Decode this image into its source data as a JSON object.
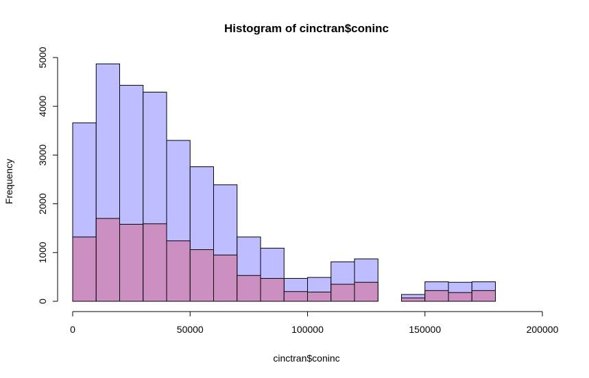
{
  "chart_data": {
    "type": "bar",
    "title": "Histogram of cinctran$coninc",
    "xlabel": "cinctran$coninc",
    "ylabel": "Frequency",
    "xlim": [
      0,
      200000
    ],
    "ylim": [
      0,
      5000
    ],
    "x_ticks": [
      "0",
      "50000",
      "100000",
      "150000",
      "200000"
    ],
    "y_ticks": [
      "0",
      "1000",
      "2000",
      "3000",
      "4000",
      "5000"
    ],
    "bin_width": 10000,
    "bin_starts": [
      0,
      10000,
      20000,
      30000,
      40000,
      50000,
      60000,
      70000,
      80000,
      90000,
      100000,
      110000,
      120000,
      130000,
      140000,
      150000,
      160000,
      170000
    ],
    "series": [
      {
        "color": "#bdbdff",
        "values": [
          3660,
          4870,
          4430,
          4290,
          3300,
          2760,
          2390,
          1320,
          1090,
          470,
          490,
          810,
          870,
          0,
          140,
          400,
          390,
          400
        ]
      },
      {
        "color": "#cc8fc2",
        "values": [
          1320,
          1700,
          1580,
          1590,
          1240,
          1060,
          950,
          530,
          470,
          200,
          190,
          350,
          390,
          0,
          70,
          220,
          180,
          220
        ]
      }
    ],
    "grid": false,
    "legend": "none"
  }
}
